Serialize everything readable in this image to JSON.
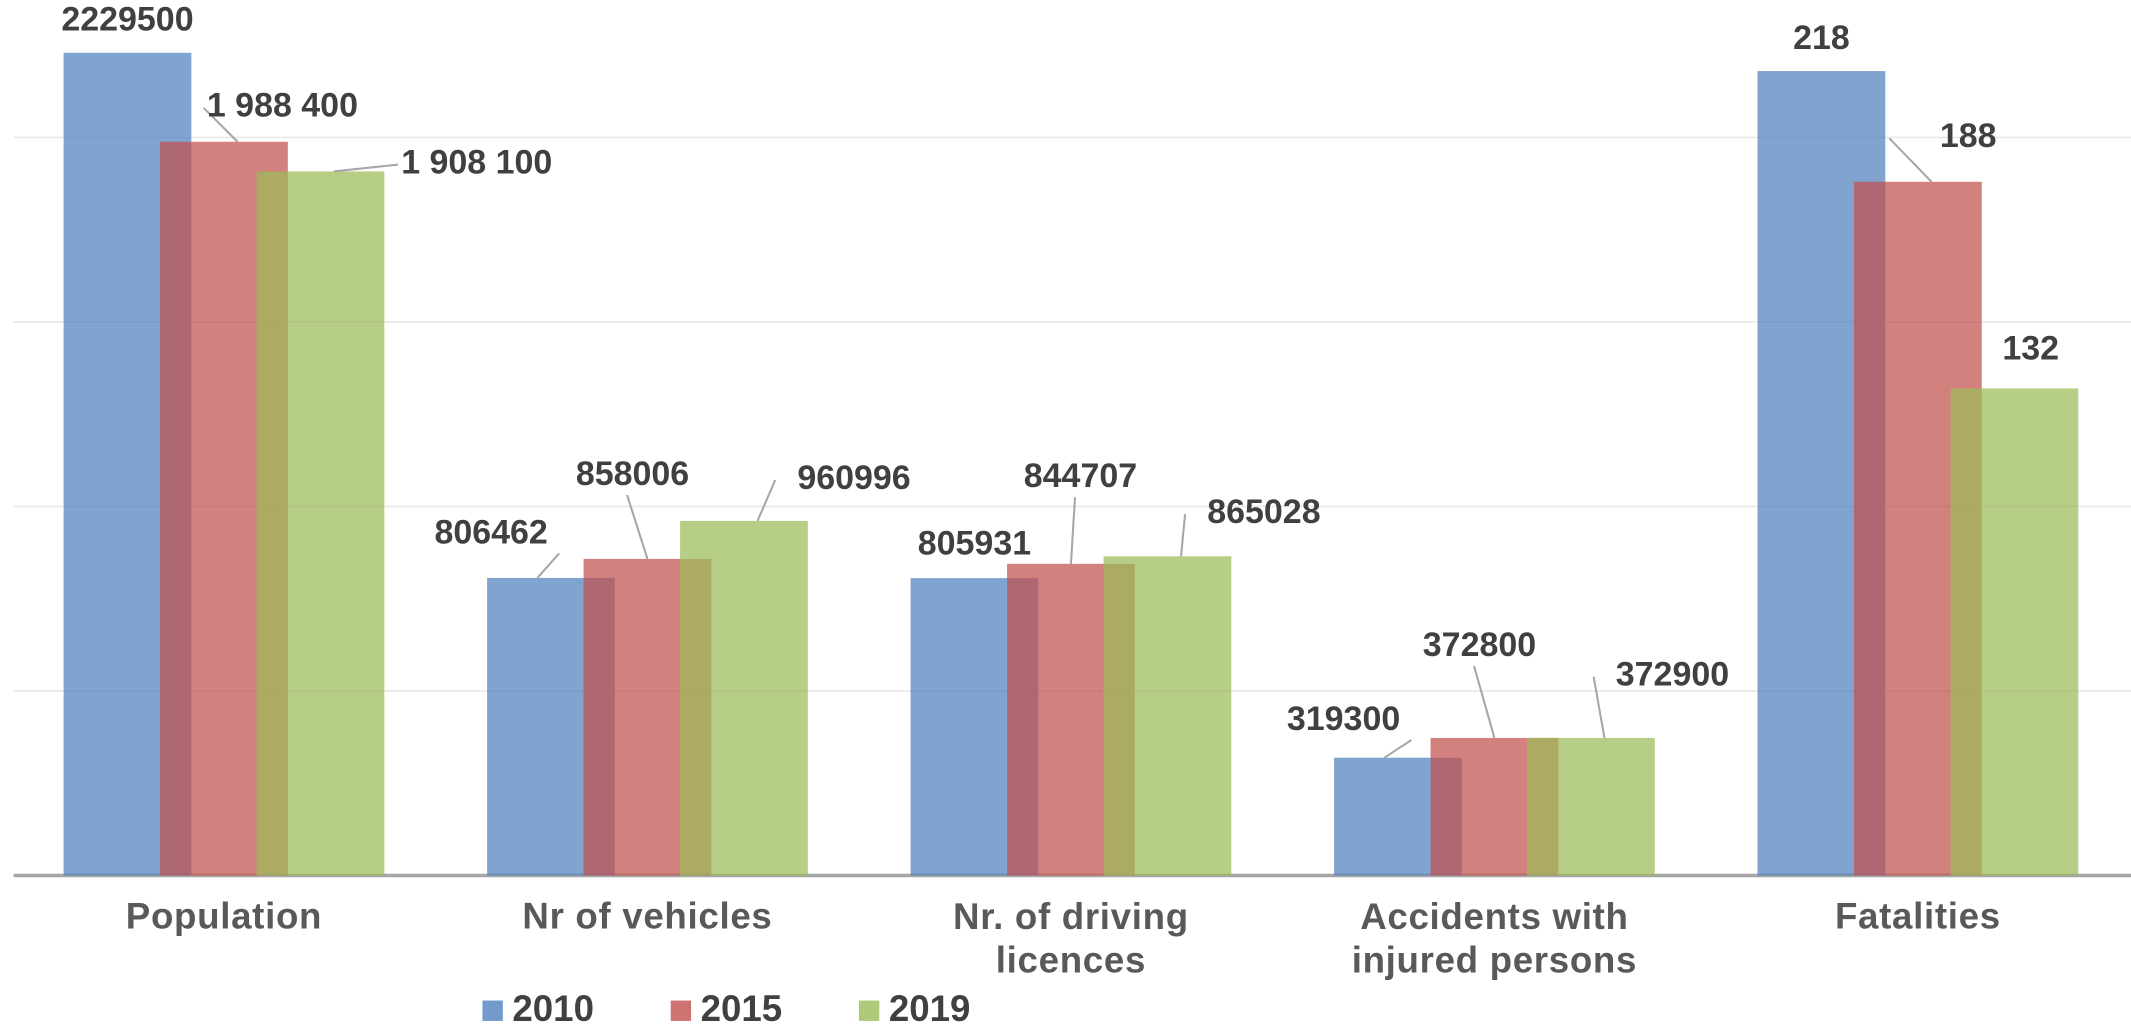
{
  "chart_data": [
    {
      "type": "bar",
      "categories": [
        "Population",
        "Nr of vehicles",
        "Nr. of driving licences",
        "Accidents with injured persons"
      ],
      "series": [
        {
          "name": "2010",
          "color": "#4f81bd",
          "values": [
            2229500,
            806462,
            805931,
            319300
          ]
        },
        {
          "name": "2015",
          "color": "#c0504d",
          "values": [
            1988400,
            858006,
            844707,
            372800
          ],
          "value_labels": [
            "1 988 400",
            "858006",
            "844707",
            "372800"
          ]
        },
        {
          "name": "2019",
          "color": "#9bbb59",
          "values": [
            1908100,
            960996,
            865028,
            372900
          ],
          "value_labels": [
            "1 908 100",
            "960996",
            "865028",
            "372900"
          ]
        }
      ],
      "ylim": [
        0,
        2300000
      ],
      "yticks": [
        0,
        500000,
        1000000,
        1500000,
        2000000
      ],
      "grid": true,
      "legend": "bottom"
    },
    {
      "type": "bar",
      "categories": [
        "Fatalities"
      ],
      "series": [
        {
          "color": "#4f81bd",
          "values": [
            218
          ]
        },
        {
          "color": "#c0504d",
          "values": [
            188
          ]
        },
        {
          "color": "#9bbb59",
          "values": [
            132
          ]
        }
      ],
      "ylim": [
        0,
        230
      ]
    }
  ]
}
